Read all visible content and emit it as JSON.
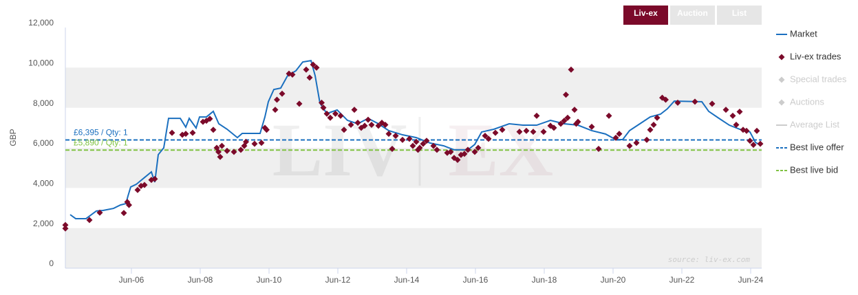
{
  "buttons": [
    "Liv-ex",
    "Auction",
    "List"
  ],
  "watermark": [
    "LIV",
    "EX"
  ],
  "source": "source: liv-ex.com",
  "chart_data": {
    "type": "line",
    "ylabel": "GBP",
    "xlim": [
      2004.5,
      2024.74
    ],
    "ylim": [
      0,
      12000
    ],
    "yticks": [
      0,
      {
        "value": 2000,
        "label": "2,000"
      },
      {
        "value": 4000,
        "label": "4,000"
      },
      {
        "value": 6000,
        "label": "6,000"
      },
      {
        "value": 8000,
        "label": "8,000"
      },
      {
        "value": 10000,
        "label": "10,000"
      },
      {
        "value": 12000,
        "label": "12,000"
      }
    ],
    "xticks": [
      {
        "value": 2006.42,
        "label": "Jun-06"
      },
      {
        "value": 2008.42,
        "label": "Jun-08"
      },
      {
        "value": 2010.42,
        "label": "Jun-10"
      },
      {
        "value": 2012.42,
        "label": "Jun-12"
      },
      {
        "value": 2014.42,
        "label": "Jun-14"
      },
      {
        "value": 2016.42,
        "label": "Jun-16"
      },
      {
        "value": 2018.42,
        "label": "Jun-18"
      },
      {
        "value": 2020.42,
        "label": "Jun-20"
      },
      {
        "value": 2022.42,
        "label": "Jun-22"
      },
      {
        "value": 2024.42,
        "label": "Jun-24"
      }
    ],
    "bands": true,
    "series": [
      {
        "name": "Market",
        "type": "line",
        "color": "#1a6fbf",
        "x": [
          2004.64,
          2004.8,
          2005.1,
          2005.4,
          2005.6,
          2005.9,
          2006.1,
          2006.26,
          2006.32,
          2006.4,
          2006.56,
          2006.8,
          2007.0,
          2007.1,
          2007.2,
          2007.36,
          2007.5,
          2007.84,
          2008.0,
          2008.1,
          2008.3,
          2008.4,
          2008.6,
          2008.8,
          2008.96,
          2009.2,
          2009.5,
          2009.64,
          2010.16,
          2010.3,
          2010.4,
          2010.56,
          2010.76,
          2010.96,
          2011.2,
          2011.4,
          2011.64,
          2011.76,
          2011.9,
          2012.1,
          2012.4,
          2012.7,
          2013.0,
          2013.3,
          2013.6,
          2013.9,
          2014.3,
          2014.7,
          2015.1,
          2015.5,
          2015.8,
          2016.2,
          2016.4,
          2016.6,
          2016.96,
          2017.4,
          2017.8,
          2018.2,
          2018.6,
          2019.0,
          2019.4,
          2019.8,
          2020.2,
          2020.5,
          2020.7,
          2020.9,
          2021.2,
          2021.5,
          2021.8,
          2022.0,
          2022.2,
          2023.0,
          2023.2,
          2023.5,
          2023.8,
          2024.1,
          2024.4,
          2024.56,
          2024.66
        ],
        "values": [
          2670,
          2470,
          2470,
          2850,
          2880,
          2980,
          3150,
          3220,
          3600,
          4050,
          4180,
          4520,
          4800,
          4290,
          5660,
          6000,
          7470,
          7470,
          7030,
          7470,
          6990,
          7540,
          7540,
          7820,
          7200,
          6930,
          6510,
          6720,
          6720,
          7540,
          8300,
          8910,
          8980,
          9600,
          9840,
          10280,
          10350,
          9600,
          8230,
          7710,
          7890,
          7370,
          7200,
          7470,
          7200,
          6860,
          6650,
          6510,
          6240,
          6100,
          5900,
          5900,
          6170,
          6790,
          6930,
          7200,
          7130,
          7130,
          7370,
          7200,
          7130,
          6860,
          6690,
          6410,
          6410,
          6860,
          7200,
          7540,
          7680,
          7950,
          8330,
          8300,
          7820,
          7470,
          7130,
          6930,
          6790,
          6270,
          6170
        ]
      },
      {
        "name": "Liv-ex trades",
        "type": "scatter",
        "color": "#7b0a2a",
        "x": [
          2004.5,
          2004.5,
          2005.2,
          2005.5,
          2006.2,
          2006.3,
          2006.35,
          2006.6,
          2006.7,
          2006.8,
          2007.0,
          2007.1,
          2007.6,
          2007.9,
          2008.0,
          2008.2,
          2008.5,
          2008.6,
          2008.7,
          2008.8,
          2008.9,
          2008.95,
          2009.0,
          2009.05,
          2009.2,
          2009.4,
          2009.6,
          2009.7,
          2009.75,
          2010.0,
          2010.2,
          2010.3,
          2010.35,
          2010.6,
          2010.65,
          2010.8,
          2011.0,
          2011.1,
          2011.3,
          2011.5,
          2011.6,
          2011.7,
          2011.8,
          2011.95,
          2012.0,
          2012.1,
          2012.2,
          2012.35,
          2012.5,
          2012.6,
          2012.8,
          2012.9,
          2013.0,
          2013.1,
          2013.2,
          2013.3,
          2013.4,
          2013.6,
          2013.7,
          2013.8,
          2013.9,
          2014.0,
          2014.1,
          2014.3,
          2014.5,
          2014.6,
          2014.7,
          2014.75,
          2014.8,
          2014.9,
          2015.0,
          2015.2,
          2015.3,
          2015.6,
          2015.7,
          2015.8,
          2015.9,
          2016.0,
          2016.1,
          2016.2,
          2016.4,
          2016.5,
          2016.7,
          2016.8,
          2017.0,
          2017.2,
          2017.7,
          2017.9,
          2018.1,
          2018.2,
          2018.4,
          2018.6,
          2018.7,
          2018.9,
          2019.0,
          2019.05,
          2019.1,
          2019.2,
          2019.3,
          2019.35,
          2019.4,
          2019.8,
          2020.0,
          2020.3,
          2020.5,
          2020.6,
          2020.9,
          2021.1,
          2021.4,
          2021.5,
          2021.6,
          2021.7,
          2021.85,
          2021.95,
          2022.3,
          2022.8,
          2023.3,
          2023.7,
          2023.9,
          2024.0,
          2024.1,
          2024.2,
          2024.3,
          2024.4,
          2024.5,
          2024.6,
          2024.7
        ],
        "values": [
          1980,
          2150,
          2400,
          2770,
          2750,
          3300,
          3150,
          3900,
          4100,
          4150,
          4400,
          4450,
          6750,
          6650,
          6700,
          6750,
          7300,
          7350,
          7450,
          6900,
          6000,
          5800,
          5550,
          6100,
          5850,
          5800,
          5900,
          6100,
          6300,
          6200,
          6250,
          7000,
          6900,
          7900,
          8400,
          8700,
          9700,
          9650,
          8200,
          9900,
          9500,
          10150,
          10000,
          8250,
          8000,
          7700,
          7500,
          7700,
          7600,
          6900,
          7150,
          7900,
          7250,
          7000,
          7100,
          7400,
          7150,
          7100,
          7250,
          7150,
          6700,
          5950,
          6600,
          6400,
          6450,
          6100,
          6300,
          5900,
          6000,
          6200,
          6350,
          6100,
          5900,
          5750,
          5800,
          5500,
          5400,
          5650,
          5700,
          5900,
          5800,
          6000,
          6600,
          6450,
          6750,
          6900,
          6800,
          6850,
          6800,
          7600,
          6800,
          7100,
          7000,
          7200,
          7350,
          8650,
          7500,
          9900,
          7900,
          7200,
          7300,
          7050,
          5950,
          7600,
          6500,
          6700,
          6100,
          6250,
          6400,
          6900,
          7150,
          7500,
          8500,
          8400,
          8250,
          8300,
          8200,
          7900,
          7600,
          7150,
          7800,
          6900,
          6850,
          6350,
          6150,
          6850,
          6200
        ]
      },
      {
        "name": "Special trades",
        "type": "scatter",
        "color": "#cccccc",
        "visible": false
      },
      {
        "name": "Auctions",
        "type": "scatter",
        "color": "#cccccc",
        "visible": false
      },
      {
        "name": "Average List",
        "type": "line",
        "color": "#cccccc",
        "visible": false
      }
    ],
    "reference_lines": [
      {
        "name": "Best live offer",
        "value": 6395,
        "label": "£6,395 / Qty: 1",
        "color": "#1a6fbf"
      },
      {
        "name": "Best live bid",
        "value": 5890,
        "label": "£5,890 / Qty: 1",
        "color": "#7fc241"
      }
    ]
  }
}
